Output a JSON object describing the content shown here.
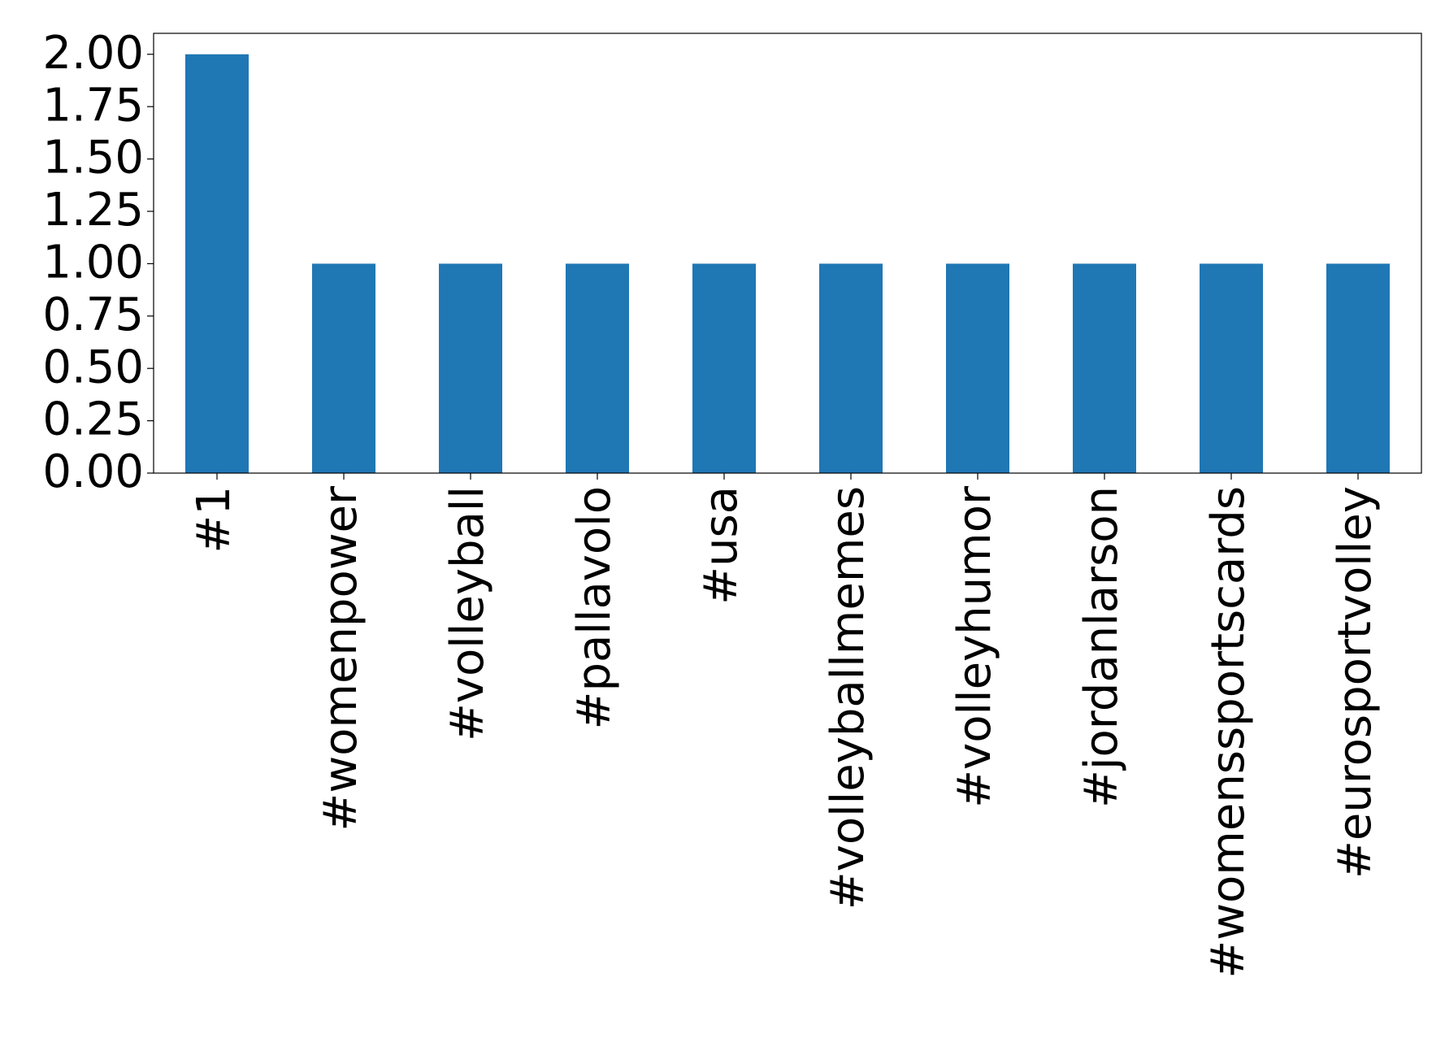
{
  "chart_data": {
    "type": "bar",
    "categories": [
      "#1",
      "#womenpower",
      "#volleyball",
      "#pallavolo",
      "#usa",
      "#volleyballmemes",
      "#volleyhumor",
      "#jordanlarson",
      "#womenssportscards",
      "#eurosportvolley"
    ],
    "values": [
      2,
      1,
      1,
      1,
      1,
      1,
      1,
      1,
      1,
      1
    ],
    "color": "#1f77b4",
    "ylim": [
      0,
      2.1
    ],
    "yticks": [
      {
        "value": 0,
        "label": "0.00"
      },
      {
        "value": 0.25,
        "label": "0.25"
      },
      {
        "value": 0.5,
        "label": "0.50"
      },
      {
        "value": 0.75,
        "label": "0.75"
      },
      {
        "value": 1,
        "label": "1.00"
      },
      {
        "value": 1.25,
        "label": "1.25"
      },
      {
        "value": 1.5,
        "label": "1.50"
      },
      {
        "value": 1.75,
        "label": "1.75"
      },
      {
        "value": 2,
        "label": "2.00"
      }
    ],
    "grid": false
  }
}
